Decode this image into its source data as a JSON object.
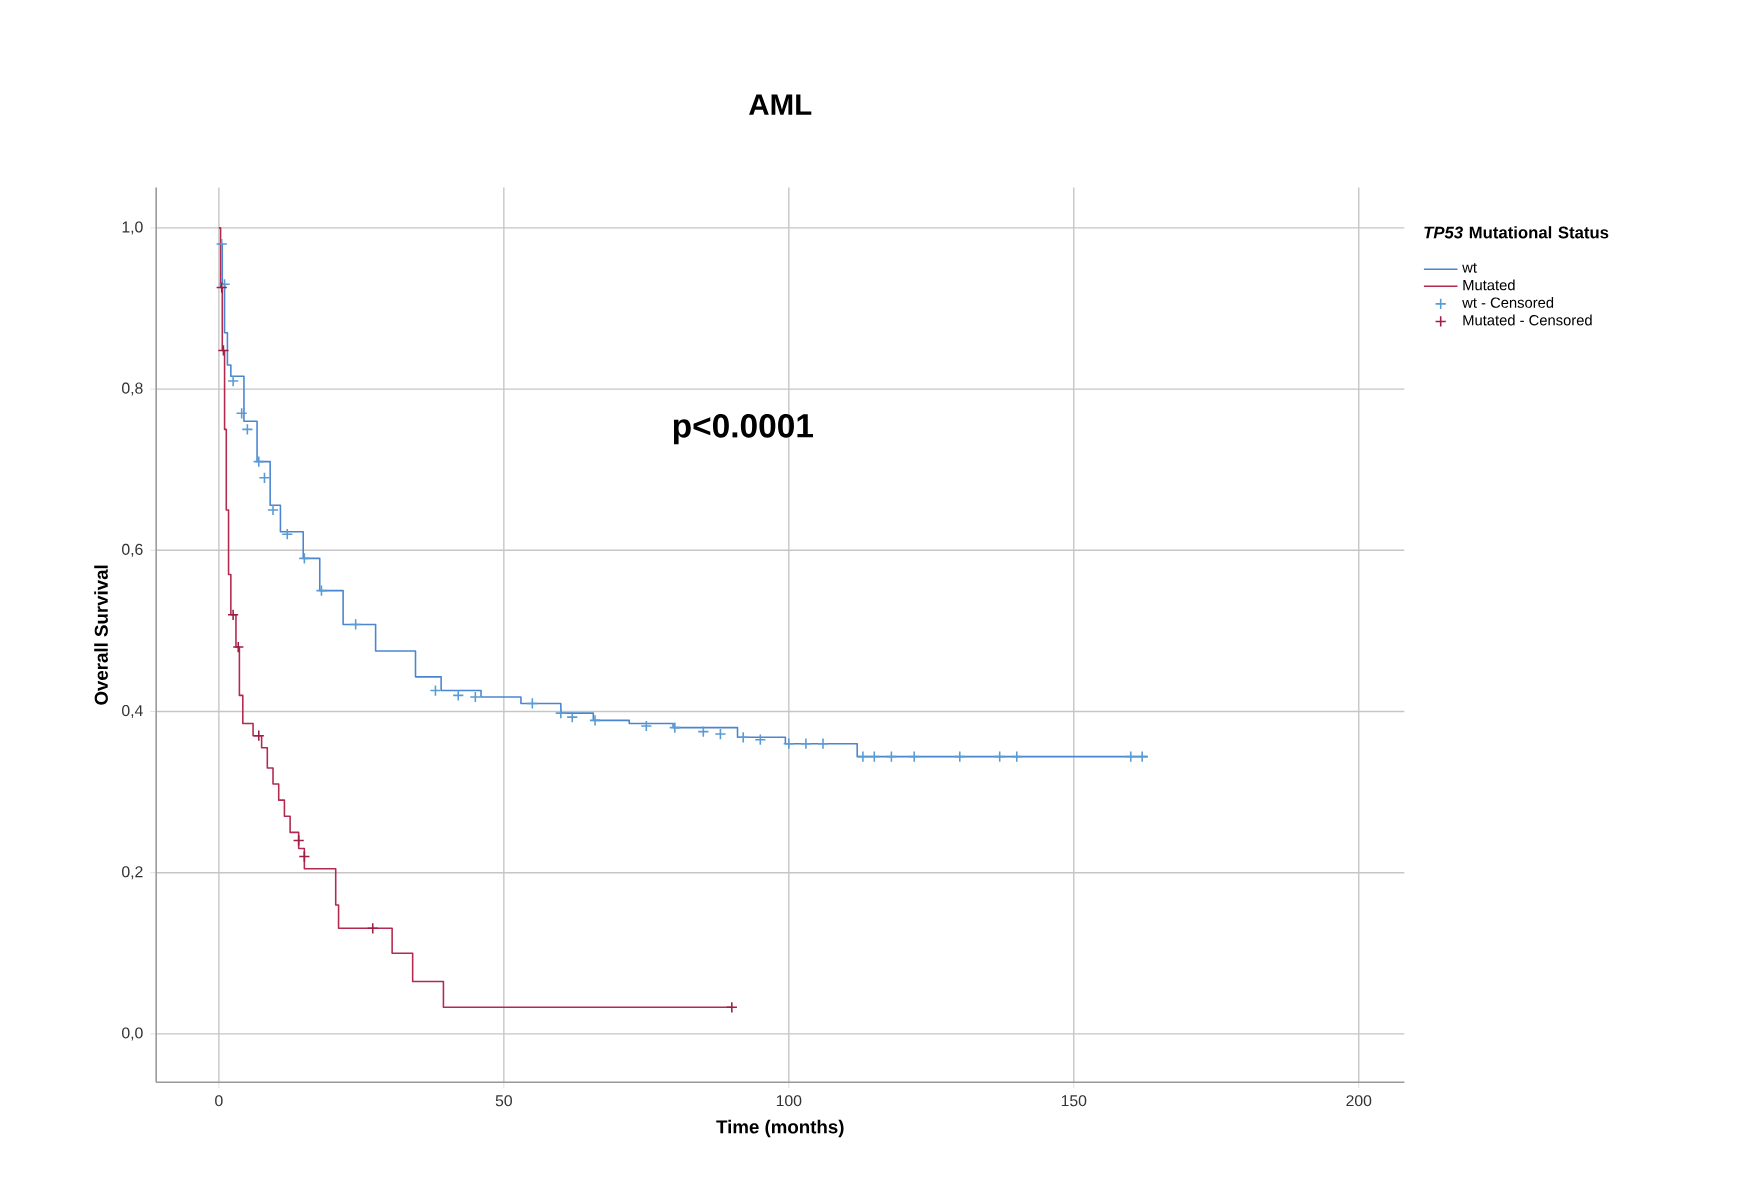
{
  "chart_data": {
    "type": "step",
    "title": "AML",
    "xlabel": "Time (months)",
    "ylabel": "Overall Survival",
    "legend_title": "*TP53* Mutational Status",
    "annotations": [
      "p<0.0001"
    ],
    "xlim": [
      -11,
      208
    ],
    "ylim": [
      -0.06,
      1.05
    ],
    "xticks": [
      0,
      50,
      100,
      150,
      200
    ],
    "yticks": [
      {
        "value": 0,
        "label": "0,0"
      },
      {
        "value": 0.2,
        "label": "0,2"
      },
      {
        "value": 0.4,
        "label": "0,4"
      },
      {
        "value": 0.6,
        "label": "0,6"
      },
      {
        "value": 0.8,
        "label": "0,8"
      },
      {
        "value": 1,
        "label": "1,0"
      }
    ],
    "grid": true,
    "legend": "right",
    "series": [
      {
        "name": "wt",
        "color": "#4a86d0",
        "x": [
          0,
          0.6,
          1.0,
          1.5,
          2.1,
          4.4,
          6.7,
          9,
          10.8,
          14.8,
          17.7,
          21.8,
          27.5,
          34.5,
          39,
          46,
          53,
          60,
          65.7,
          72,
          79.7,
          91,
          99.4,
          112,
          163
        ],
        "values": [
          0.98,
          0.93,
          0.87,
          0.83,
          0.816,
          0.76,
          0.71,
          0.656,
          0.623,
          0.59,
          0.55,
          0.508,
          0.475,
          0.443,
          0.426,
          0.418,
          0.41,
          0.398,
          0.389,
          0.385,
          0.38,
          0.368,
          0.36,
          0.344,
          0.344
        ]
      },
      {
        "name": "Mutated",
        "color": "#b22a4f",
        "x": [
          0,
          0.3,
          0.6,
          1.0,
          1.3,
          1.7,
          2.1,
          3.0,
          3.6,
          4.2,
          6.0,
          7.5,
          8.5,
          9.5,
          10.5,
          11.5,
          12.5,
          14.0,
          15.0,
          20.5,
          21,
          30.4,
          34,
          39.4,
          90
        ],
        "values": [
          1.0,
          0.926,
          0.848,
          0.75,
          0.65,
          0.57,
          0.52,
          0.48,
          0.42,
          0.385,
          0.37,
          0.355,
          0.33,
          0.31,
          0.29,
          0.27,
          0.25,
          0.23,
          0.205,
          0.16,
          0.131,
          0.1,
          0.065,
          0.033,
          0.033
        ]
      },
      {
        "name": "wt - Censored",
        "type": "scatter",
        "marker": "cross",
        "color": "#5b9bd5",
        "x": [
          0.5,
          1,
          2.5,
          4,
          5,
          7,
          8,
          9.5,
          12,
          15,
          18,
          24,
          38,
          42,
          45,
          55,
          60,
          62,
          66,
          75,
          80,
          85,
          88,
          92,
          95,
          100,
          103,
          106,
          113,
          115,
          118,
          122,
          130,
          137,
          140,
          160,
          162
        ],
        "values": [
          0.98,
          0.93,
          0.81,
          0.77,
          0.75,
          0.71,
          0.69,
          0.65,
          0.62,
          0.59,
          0.55,
          0.508,
          0.426,
          0.42,
          0.418,
          0.41,
          0.398,
          0.393,
          0.389,
          0.382,
          0.38,
          0.375,
          0.372,
          0.368,
          0.365,
          0.36,
          0.36,
          0.36,
          0.344,
          0.344,
          0.344,
          0.344,
          0.344,
          0.344,
          0.344,
          0.344,
          0.344
        ]
      },
      {
        "name": "Mutated - Censored",
        "type": "scatter",
        "marker": "cross",
        "color": "#9e1f45",
        "x": [
          0.5,
          0.8,
          2.5,
          3.4,
          7,
          14,
          15,
          27,
          90
        ],
        "values": [
          0.926,
          0.848,
          0.52,
          0.48,
          0.37,
          0.24,
          0.22,
          0.131,
          0.033
        ]
      }
    ]
  }
}
